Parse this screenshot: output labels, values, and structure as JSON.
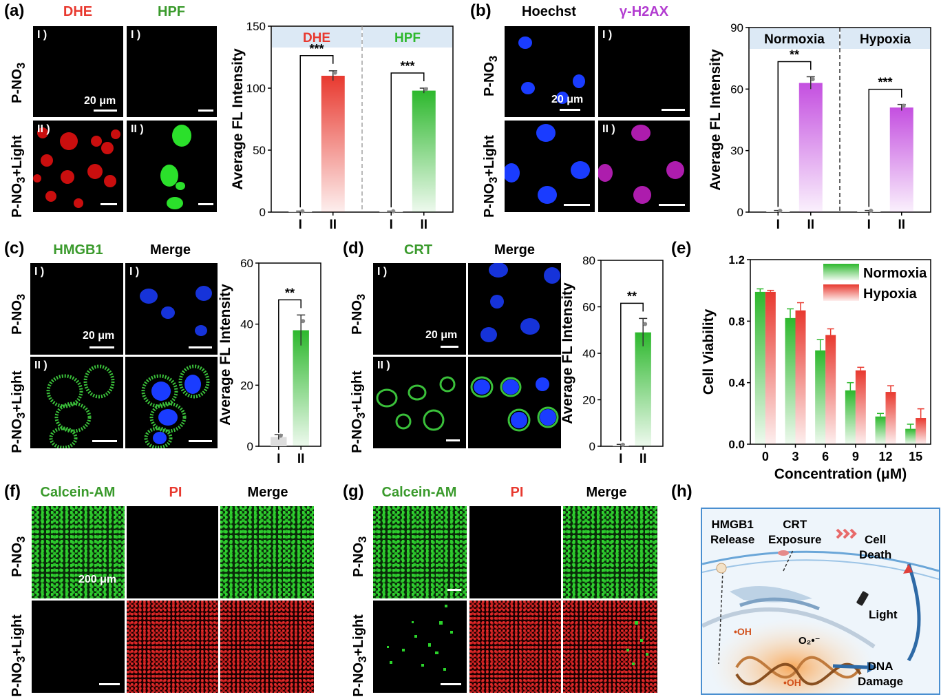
{
  "panel_letters": [
    "(a)",
    "(b)",
    "(c)",
    "(d)",
    "(e)",
    "(f)",
    "(g)",
    "(h)"
  ],
  "rows": {
    "p_no3": "P-NO",
    "p_no3_sub": "3",
    "light_suffix": "+Light"
  },
  "image_tags": {
    "i": "I )",
    "ii": "II )"
  },
  "scale_labels": {
    "um20": "20 μm",
    "um200": "200 μm"
  },
  "panel_a": {
    "col1": "DHE",
    "col2": "HPF"
  },
  "panel_b": {
    "col1": "Hoechst",
    "col2": "γ-H2AX"
  },
  "panel_c": {
    "col1": "HMGB1",
    "col2": "Merge"
  },
  "panel_d": {
    "col1": "CRT",
    "col2": "Merge"
  },
  "panel_f": {
    "col1": "Calcein-AM",
    "col2": "PI",
    "col3": "Merge"
  },
  "panel_g": {
    "col1": "Calcein-AM",
    "col2": "PI",
    "col3": "Merge"
  },
  "panel_h": {
    "hmgb1_line1": "HMGB1",
    "hmgb1_line2": "Release",
    "crt_line1": "CRT",
    "crt_line2": "Exposure",
    "cell_line1": "Cell",
    "cell_line2": "Death",
    "light": "Light",
    "oh1": "•OH",
    "oh2": "•OH",
    "o2": "O₂•⁻",
    "dna_line1": "DNA",
    "dna_line2": "Damage"
  },
  "chart_data": [
    {
      "id": "a",
      "type": "bar",
      "ylabel": "Average FL Intensity",
      "ylim": [
        0,
        150
      ],
      "yticks": [
        0,
        50,
        100,
        150
      ],
      "groups": [
        {
          "header": "DHE",
          "color": "#e8392f",
          "categories": [
            "I",
            "II"
          ],
          "values": [
            0.5,
            110
          ],
          "errors": [
            0.3,
            4
          ],
          "significance": "***"
        },
        {
          "header": "HPF",
          "color": "#2db82d",
          "categories": [
            "I",
            "II"
          ],
          "values": [
            0.5,
            98
          ],
          "errors": [
            0.3,
            2
          ],
          "significance": "***"
        }
      ]
    },
    {
      "id": "b",
      "type": "bar",
      "ylabel": "Average FL Intensity",
      "ylim": [
        0,
        90
      ],
      "yticks": [
        0,
        30,
        60,
        90
      ],
      "groups": [
        {
          "header": "Normoxia",
          "color": "#c44fe0",
          "categories": [
            "I",
            "II"
          ],
          "values": [
            0.5,
            63
          ],
          "errors": [
            0.3,
            3
          ],
          "significance": "**"
        },
        {
          "header": "Hypoxia",
          "color": "#c44fe0",
          "categories": [
            "I",
            "II"
          ],
          "values": [
            0.5,
            51
          ],
          "errors": [
            0.3,
            1.5
          ],
          "significance": "***"
        }
      ]
    },
    {
      "id": "c",
      "type": "bar",
      "ylabel": "Average FL Intensity",
      "ylim": [
        0,
        60
      ],
      "yticks": [
        0,
        20,
        40,
        60
      ],
      "groups": [
        {
          "color": "#2db82d",
          "categories": [
            "I",
            "II"
          ],
          "values": [
            3,
            38
          ],
          "errors": [
            0.8,
            5
          ],
          "significance": "**"
        }
      ]
    },
    {
      "id": "d",
      "type": "bar",
      "ylabel": "Average FL Intensity",
      "ylim": [
        0,
        80
      ],
      "yticks": [
        0,
        20,
        40,
        60,
        80
      ],
      "groups": [
        {
          "color": "#2db82d",
          "categories": [
            "I",
            "II"
          ],
          "values": [
            0.5,
            49
          ],
          "errors": [
            0.3,
            6
          ],
          "significance": "**"
        }
      ]
    },
    {
      "id": "e",
      "type": "bar",
      "xlabel": "Concentration (μM)",
      "ylabel": "Cell Viability",
      "ylim": [
        0,
        1.2
      ],
      "yticks": [
        "0.0",
        "0.4",
        "0.8",
        "1.2"
      ],
      "categories": [
        "0",
        "3",
        "6",
        "9",
        "12",
        "15"
      ],
      "series": [
        {
          "name": "Normoxia",
          "color": "#2db82d",
          "values": [
            0.99,
            0.82,
            0.61,
            0.35,
            0.18,
            0.1
          ],
          "errors": [
            0.02,
            0.06,
            0.07,
            0.05,
            0.02,
            0.03
          ]
        },
        {
          "name": "Hypoxia",
          "color": "#e8392f",
          "values": [
            0.99,
            0.87,
            0.71,
            0.48,
            0.34,
            0.17
          ],
          "errors": [
            0.01,
            0.05,
            0.04,
            0.02,
            0.04,
            0.06
          ]
        }
      ]
    }
  ]
}
